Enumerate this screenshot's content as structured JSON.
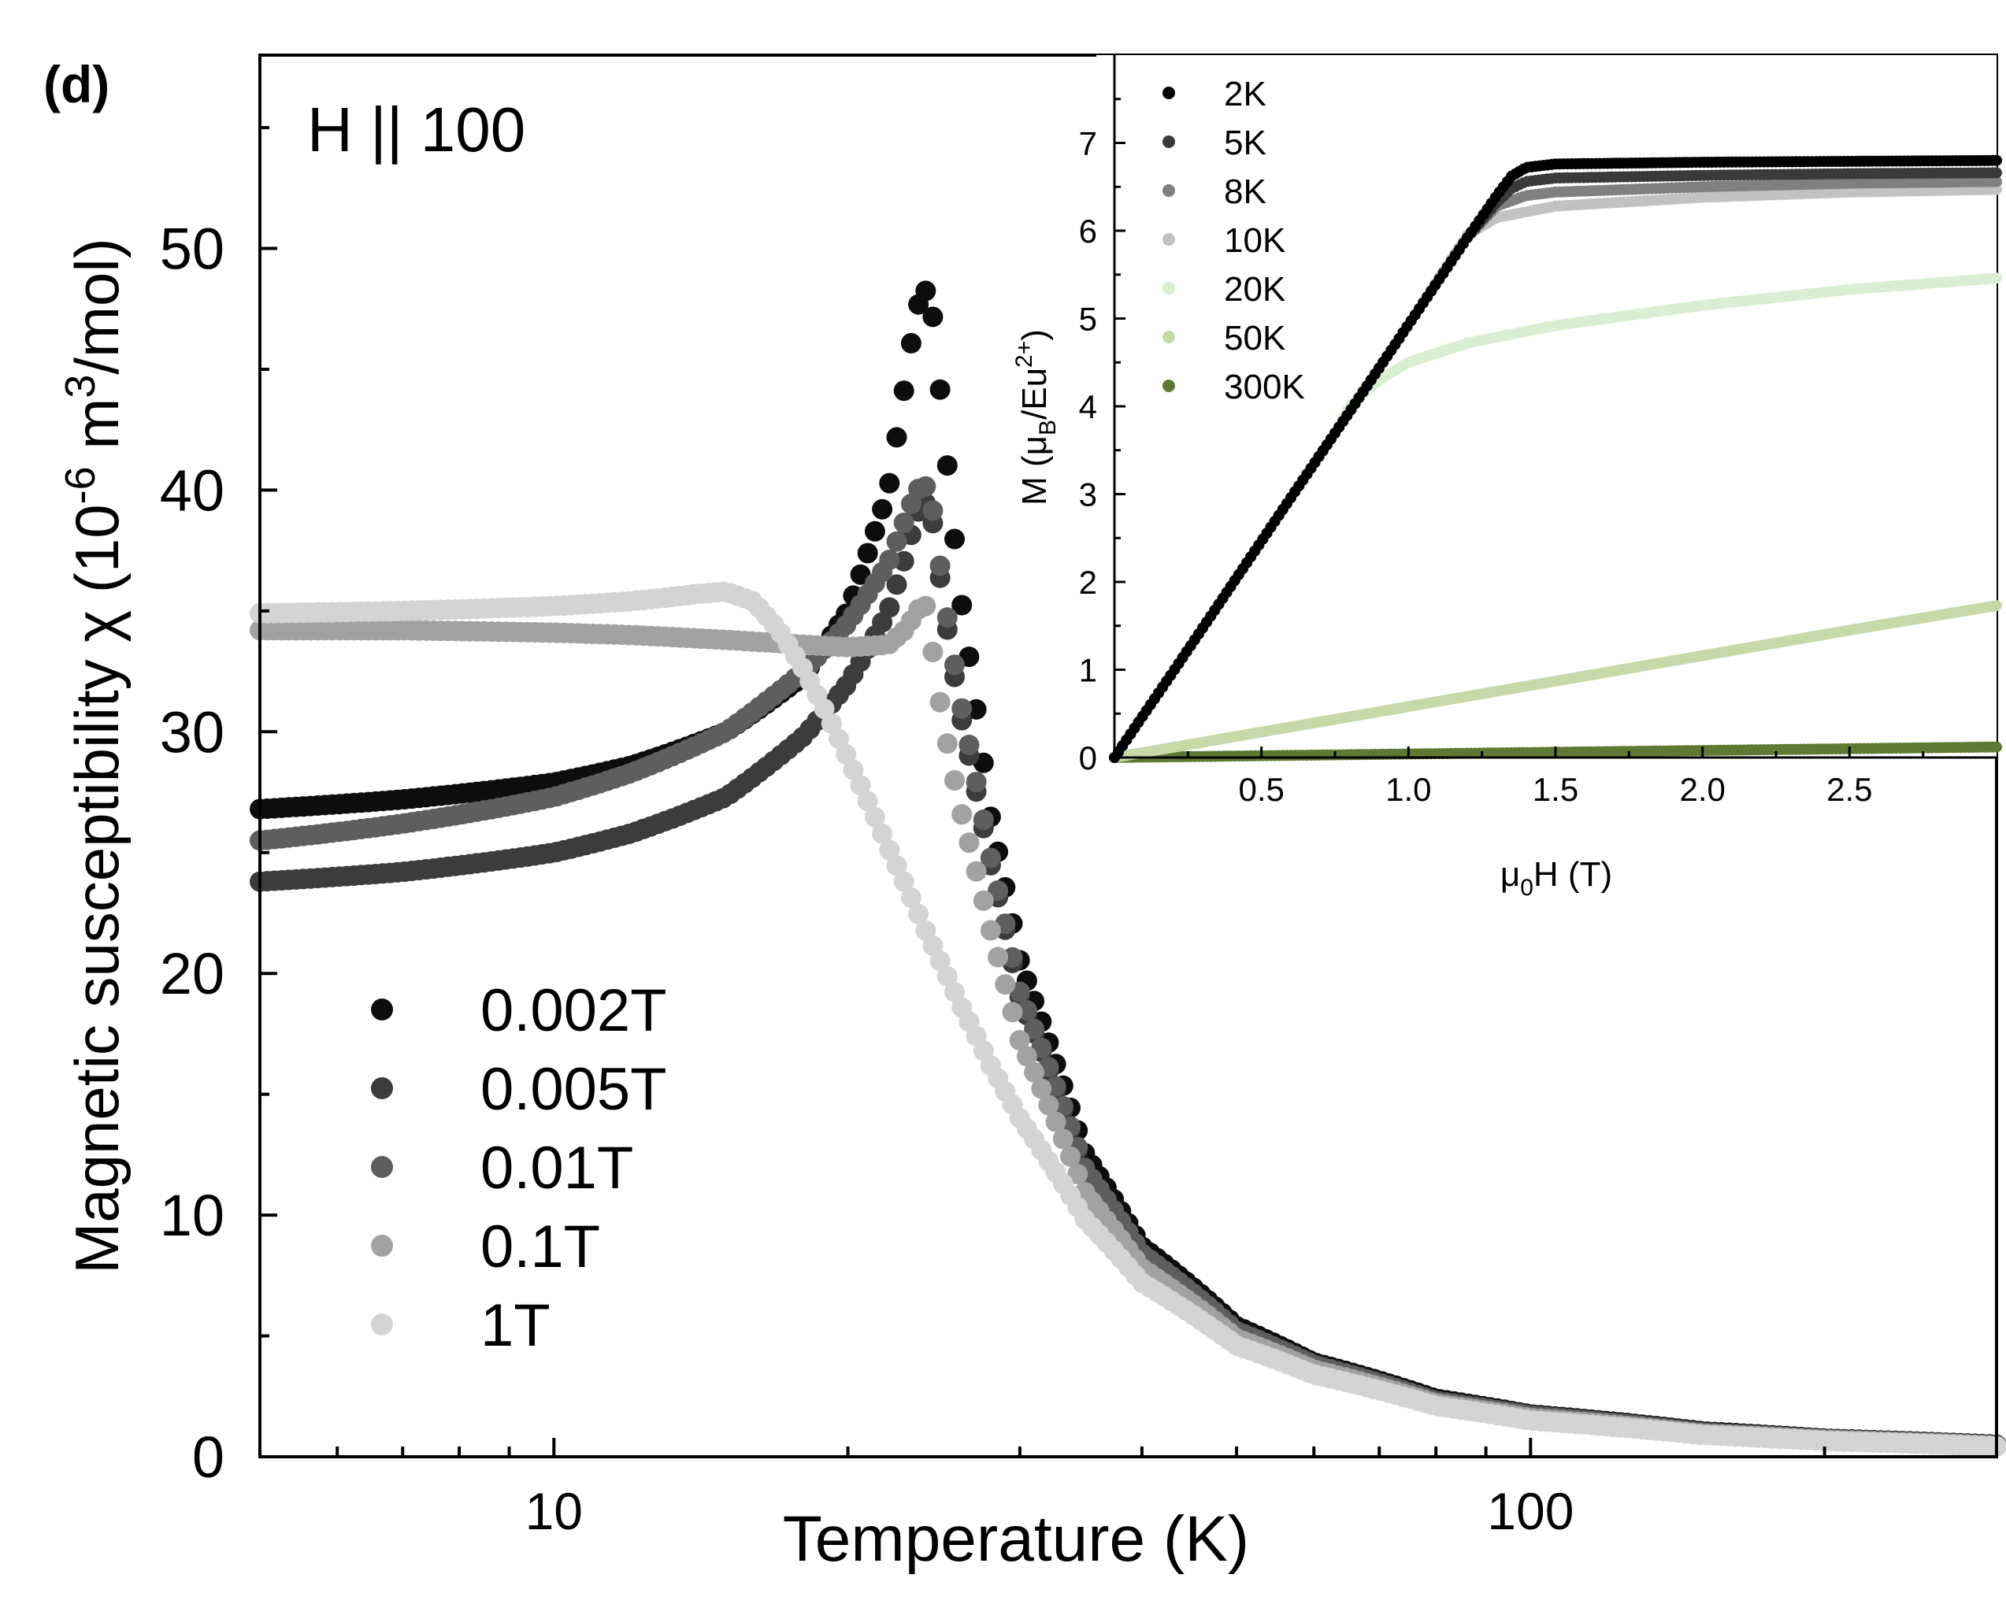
{
  "panel_label": "(d)",
  "annotation": "H || 100",
  "chart_data": [
    {
      "type": "scatter",
      "id": "main",
      "title": "",
      "xlabel": "Temperature (K)",
      "ylabel_parts": {
        "pre": "Magnetic susceptibility χ (10",
        "exp1": "-6",
        "mid": " m",
        "exp2": "3",
        "post": "/mol)"
      },
      "xscale": "log",
      "xlim": [
        5,
        300
      ],
      "ylim": [
        0,
        58
      ],
      "xticks": [
        10,
        100
      ],
      "xtick_labels": [
        "10",
        "100"
      ],
      "yticks": [
        0,
        10,
        20,
        30,
        40,
        50
      ],
      "ytick_labels": [
        "0",
        "10",
        "20",
        "30",
        "40",
        "50"
      ],
      "legend_position": "lower-left",
      "series": [
        {
          "name": "0.002T",
          "color": "#0d0d0d",
          "x": [
            5,
            7,
            10,
            12,
            15,
            18,
            20,
            22,
            23,
            23.5,
            24,
            24.5,
            25,
            26,
            28,
            30,
            35,
            40,
            50,
            60,
            80,
            100,
            150,
            200,
            300
          ],
          "y": [
            26.8,
            27.2,
            27.9,
            28.6,
            30.0,
            32.3,
            35.0,
            40.0,
            45.0,
            47.5,
            48.3,
            47.0,
            43.0,
            36.0,
            26.5,
            20.5,
            12.5,
            8.7,
            5.4,
            3.9,
            2.4,
            1.75,
            1.05,
            0.75,
            0.5
          ]
        },
        {
          "name": "0.005T",
          "color": "#3c3c3c",
          "x": [
            5,
            7,
            10,
            12,
            15,
            18,
            20,
            22,
            23,
            23.5,
            24,
            24.5,
            25,
            26,
            28,
            30,
            35,
            40,
            50,
            60,
            80,
            100,
            150,
            200,
            300
          ],
          "y": [
            23.8,
            24.2,
            25.0,
            25.8,
            27.3,
            29.8,
            32.0,
            35.0,
            37.5,
            39.0,
            39.5,
            38.5,
            35.5,
            31.0,
            24.5,
            19.0,
            11.8,
            8.3,
            5.2,
            3.8,
            2.3,
            1.7,
            1.0,
            0.72,
            0.48
          ]
        },
        {
          "name": "0.01T",
          "color": "#5e5e5e",
          "x": [
            5,
            7,
            10,
            12,
            15,
            18,
            20,
            22,
            23,
            23.5,
            24,
            24.5,
            25,
            26,
            28,
            30,
            35,
            40,
            50,
            60,
            80,
            100,
            150,
            200,
            300
          ],
          "y": [
            25.5,
            26.2,
            27.3,
            28.3,
            30.0,
            32.5,
            34.5,
            37.0,
            39.0,
            40.0,
            40.2,
            39.0,
            36.0,
            31.5,
            24.8,
            19.2,
            11.9,
            8.4,
            5.2,
            3.8,
            2.3,
            1.7,
            1.0,
            0.72,
            0.48
          ]
        },
        {
          "name": "0.1T",
          "color": "#a2a2a2",
          "x": [
            5,
            7,
            10,
            12,
            15,
            18,
            20,
            22,
            23,
            23.5,
            24,
            24.5,
            25,
            26,
            28,
            30,
            35,
            40,
            50,
            60,
            80,
            100,
            150,
            200,
            300
          ],
          "y": [
            34.2,
            34.2,
            34.1,
            34.0,
            33.8,
            33.6,
            33.5,
            33.6,
            34.3,
            35.0,
            35.3,
            33.0,
            30.5,
            27.0,
            21.8,
            17.2,
            10.9,
            7.8,
            4.9,
            3.6,
            2.2,
            1.6,
            0.95,
            0.7,
            0.45
          ]
        },
        {
          "name": "1T",
          "color": "#d4d4d4",
          "x": [
            5,
            7,
            10,
            12,
            14,
            15,
            16,
            17,
            18,
            19,
            20,
            22,
            24,
            26,
            28,
            30,
            35,
            40,
            50,
            60,
            80,
            100,
            150,
            200,
            300
          ],
          "y": [
            34.9,
            35.0,
            35.2,
            35.4,
            35.7,
            35.8,
            35.4,
            34.2,
            32.6,
            30.8,
            28.9,
            25.2,
            21.8,
            18.8,
            16.2,
            14.0,
            9.8,
            7.2,
            4.6,
            3.4,
            2.1,
            1.5,
            0.9,
            0.65,
            0.42
          ]
        }
      ]
    },
    {
      "type": "scatter",
      "id": "inset",
      "title": "",
      "xlabel_parts": {
        "pre": "μ",
        "sub": "0",
        "post": "H (T)"
      },
      "ylabel_parts": {
        "pre": "M (μ",
        "sub": "B",
        "mid": "/Eu",
        "sup": "2+",
        "post": ")"
      },
      "xlim": [
        0,
        3.0
      ],
      "ylim": [
        0,
        8.0
      ],
      "xticks": [
        0.5,
        1.0,
        1.5,
        2.0,
        2.5
      ],
      "xtick_labels": [
        "0.5",
        "1.0",
        "1.5",
        "2.0",
        "2.5"
      ],
      "yticks": [
        0,
        1,
        2,
        3,
        4,
        5,
        6,
        7
      ],
      "ytick_labels": [
        "0",
        "1",
        "2",
        "3",
        "4",
        "5",
        "6",
        "7"
      ],
      "legend_position": "top-left",
      "series": [
        {
          "name": "2K",
          "color": "#000000",
          "x": [
            0,
            0.2,
            0.4,
            0.6,
            0.8,
            1.0,
            1.2,
            1.3,
            1.35,
            1.4,
            1.5,
            2.0,
            2.5,
            3.0
          ],
          "y": [
            0,
            0.98,
            1.97,
            2.96,
            3.94,
            4.93,
            5.92,
            6.4,
            6.62,
            6.72,
            6.76,
            6.78,
            6.79,
            6.8
          ]
        },
        {
          "name": "5K",
          "color": "#3a3a3a",
          "x": [
            0,
            0.2,
            0.4,
            0.6,
            0.8,
            1.0,
            1.2,
            1.3,
            1.35,
            1.4,
            1.5,
            2.0,
            2.5,
            3.0
          ],
          "y": [
            0,
            0.98,
            1.97,
            2.96,
            3.94,
            4.93,
            5.92,
            6.32,
            6.48,
            6.56,
            6.6,
            6.63,
            6.65,
            6.66
          ]
        },
        {
          "name": "8K",
          "color": "#808080",
          "x": [
            0,
            0.2,
            0.4,
            0.6,
            0.8,
            1.0,
            1.2,
            1.25,
            1.3,
            1.4,
            1.5,
            2.0,
            2.5,
            3.0
          ],
          "y": [
            0,
            0.98,
            1.97,
            2.96,
            3.94,
            4.93,
            5.92,
            6.1,
            6.28,
            6.4,
            6.44,
            6.5,
            6.54,
            6.56
          ]
        },
        {
          "name": "10K",
          "color": "#c2c2c2",
          "x": [
            0,
            0.2,
            0.4,
            0.6,
            0.8,
            1.0,
            1.15,
            1.2,
            1.3,
            1.5,
            2.0,
            2.5,
            3.0
          ],
          "y": [
            0,
            0.98,
            1.97,
            2.96,
            3.94,
            4.93,
            5.7,
            5.95,
            6.15,
            6.28,
            6.38,
            6.44,
            6.47
          ]
        },
        {
          "name": "20K",
          "color": "#d9eed2",
          "x": [
            0,
            0.2,
            0.4,
            0.6,
            0.75,
            0.8,
            0.9,
            1.0,
            1.2,
            1.5,
            2.0,
            2.5,
            3.0
          ],
          "y": [
            0,
            0.98,
            1.97,
            2.96,
            3.7,
            4.0,
            4.3,
            4.5,
            4.72,
            4.92,
            5.15,
            5.33,
            5.46
          ]
        },
        {
          "name": "50K",
          "color": "#c5daa8",
          "x": [
            0,
            0.5,
            1.0,
            1.5,
            2.0,
            2.5,
            3.0
          ],
          "y": [
            0,
            0.29,
            0.58,
            0.87,
            1.16,
            1.45,
            1.73
          ]
        },
        {
          "name": "300K",
          "color": "#5e7a32",
          "x": [
            0,
            0.5,
            1.0,
            1.5,
            2.0,
            2.5,
            3.0
          ],
          "y": [
            0,
            0.02,
            0.04,
            0.06,
            0.08,
            0.1,
            0.12
          ]
        }
      ]
    }
  ]
}
